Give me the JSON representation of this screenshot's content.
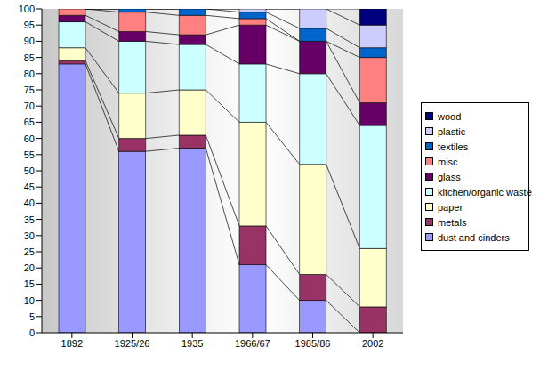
{
  "chart_data": {
    "type": "bar",
    "stacked": true,
    "grid": false,
    "legend": "right",
    "categories": [
      "1892",
      "1925/26",
      "1935",
      "1966/67",
      "1985/86",
      "2002"
    ],
    "ylim": [
      0,
      100
    ],
    "yticks": [
      0,
      5,
      10,
      15,
      20,
      25,
      30,
      35,
      40,
      45,
      50,
      55,
      60,
      65,
      70,
      75,
      80,
      85,
      90,
      95,
      100
    ],
    "series": [
      {
        "name": "dust and cinders",
        "color": "#9999ff",
        "values": [
          83,
          56,
          57,
          21,
          10,
          0
        ]
      },
      {
        "name": "metals",
        "color": "#993366",
        "values": [
          1,
          4,
          4,
          12,
          8,
          8
        ]
      },
      {
        "name": "paper",
        "color": "#ffffcc",
        "values": [
          4,
          14,
          14,
          32,
          34,
          18
        ]
      },
      {
        "name": "kitchen/organic waste",
        "color": "#ccffff",
        "values": [
          8,
          16,
          14,
          18,
          28,
          38
        ]
      },
      {
        "name": "glass",
        "color": "#660066",
        "values": [
          2,
          3,
          3,
          12,
          10,
          7
        ]
      },
      {
        "name": "misc",
        "color": "#ff8080",
        "values": [
          2,
          6,
          6,
          2,
          0,
          14
        ]
      },
      {
        "name": "textiles",
        "color": "#0066cc",
        "values": [
          0,
          1,
          2,
          2,
          4,
          3
        ]
      },
      {
        "name": "plastic",
        "color": "#ccccff",
        "values": [
          0,
          0,
          0,
          1,
          6,
          7
        ]
      },
      {
        "name": "wood",
        "color": "#000080",
        "values": [
          0,
          0,
          0,
          0,
          0,
          5
        ]
      }
    ]
  }
}
